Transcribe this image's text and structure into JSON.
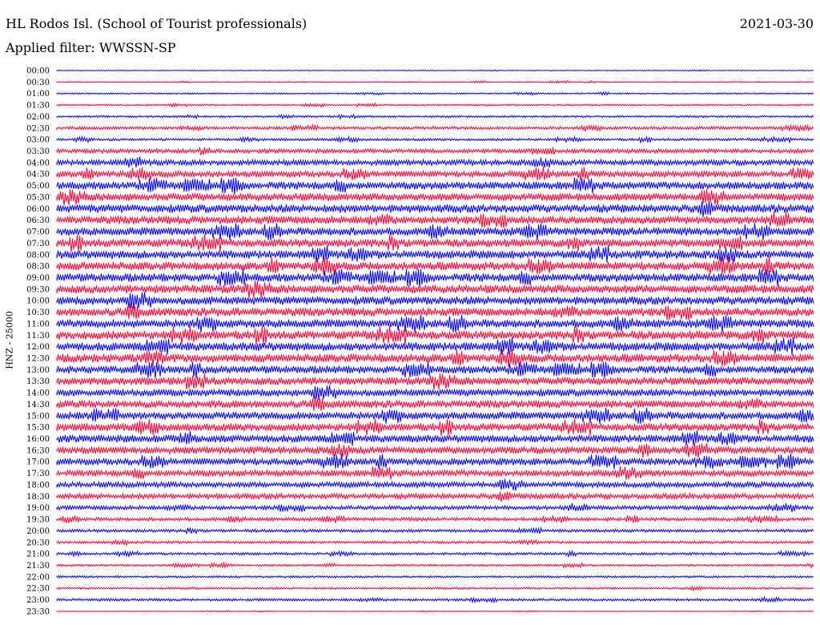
{
  "header": {
    "station": "HL Rodos Isl. (School of Tourist professionals)",
    "date": "2021-03-30",
    "filter": "Applied filter: WWSSN-SP"
  },
  "chart_data": {
    "type": "line",
    "ylabel": "HNZ - 25000",
    "series_colors": [
      "#0000ff",
      "#ff0033"
    ],
    "rows": [
      {
        "time": "00:00",
        "amp": 0.05
      },
      {
        "time": "00:30",
        "amp": 0.08
      },
      {
        "time": "01:00",
        "amp": 0.1
      },
      {
        "time": "01:30",
        "amp": 0.12
      },
      {
        "time": "02:00",
        "amp": 0.15
      },
      {
        "time": "02:30",
        "amp": 0.22
      },
      {
        "time": "03:00",
        "amp": 0.18
      },
      {
        "time": "03:30",
        "amp": 0.3
      },
      {
        "time": "04:00",
        "amp": 0.4
      },
      {
        "time": "04:30",
        "amp": 0.45
      },
      {
        "time": "05:00",
        "amp": 0.55
      },
      {
        "time": "05:30",
        "amp": 0.55
      },
      {
        "time": "06:00",
        "amp": 0.6
      },
      {
        "time": "06:30",
        "amp": 0.58
      },
      {
        "time": "07:00",
        "amp": 0.58
      },
      {
        "time": "07:30",
        "amp": 0.58
      },
      {
        "time": "08:00",
        "amp": 0.6
      },
      {
        "time": "08:30",
        "amp": 0.6
      },
      {
        "time": "09:00",
        "amp": 0.6
      },
      {
        "time": "09:30",
        "amp": 0.6
      },
      {
        "time": "10:00",
        "amp": 0.6
      },
      {
        "time": "10:30",
        "amp": 0.6
      },
      {
        "time": "11:00",
        "amp": 0.6
      },
      {
        "time": "11:30",
        "amp": 0.62
      },
      {
        "time": "12:00",
        "amp": 0.62
      },
      {
        "time": "12:30",
        "amp": 0.62
      },
      {
        "time": "13:00",
        "amp": 0.55
      },
      {
        "time": "13:30",
        "amp": 0.55
      },
      {
        "time": "14:00",
        "amp": 0.52
      },
      {
        "time": "14:30",
        "amp": 0.55
      },
      {
        "time": "15:00",
        "amp": 0.55
      },
      {
        "time": "15:30",
        "amp": 0.55
      },
      {
        "time": "16:00",
        "amp": 0.55
      },
      {
        "time": "16:30",
        "amp": 0.52
      },
      {
        "time": "17:00",
        "amp": 0.5
      },
      {
        "time": "17:30",
        "amp": 0.45
      },
      {
        "time": "18:00",
        "amp": 0.4
      },
      {
        "time": "18:30",
        "amp": 0.38
      },
      {
        "time": "19:00",
        "amp": 0.3
      },
      {
        "time": "19:30",
        "amp": 0.25
      },
      {
        "time": "20:00",
        "amp": 0.22
      },
      {
        "time": "20:30",
        "amp": 0.18
      },
      {
        "time": "21:00",
        "amp": 0.18
      },
      {
        "time": "21:30",
        "amp": 0.15
      },
      {
        "time": "22:00",
        "amp": 0.15
      },
      {
        "time": "22:30",
        "amp": 0.15
      },
      {
        "time": "23:00",
        "amp": 0.18
      },
      {
        "time": "23:30",
        "amp": 0.05
      }
    ]
  }
}
